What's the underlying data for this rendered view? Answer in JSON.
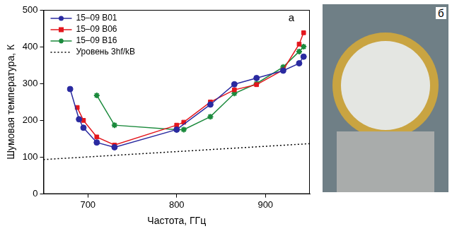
{
  "chart_data": {
    "type": "line",
    "x_label": "Частота, ГГц",
    "y_label": "Шумовая температура, К",
    "annotations": [
      "а"
    ],
    "xlim": [
      650,
      950
    ],
    "xticks": [
      700,
      800,
      900
    ],
    "ylim": [
      0,
      500
    ],
    "yticks": [
      0,
      100,
      200,
      300,
      400,
      500
    ],
    "grid": false,
    "legend": "top-left",
    "series": [
      {
        "name": "15–09 B01",
        "color": "#2a2aa0",
        "marker": "circle",
        "line_style": "solid",
        "x": [
          680,
          690,
          695,
          710,
          730,
          800,
          838,
          865,
          890,
          920,
          938,
          943
        ],
        "values": [
          285,
          203,
          180,
          140,
          127,
          175,
          243,
          298,
          315,
          335,
          355,
          373
        ]
      },
      {
        "name": "15–09 B06",
        "color": "#e3161d",
        "marker": "square",
        "line_style": "solid",
        "x": [
          688,
          695,
          710,
          730,
          800,
          808,
          838,
          865,
          890,
          920,
          938,
          943
        ],
        "values": [
          235,
          200,
          155,
          133,
          187,
          195,
          250,
          283,
          297,
          337,
          407,
          438
        ]
      },
      {
        "name": "15–09 B16",
        "color": "#1b8a3c",
        "marker": "star",
        "line_style": "solid",
        "x": [
          710,
          730,
          800,
          808,
          838,
          865,
          890,
          920,
          938,
          943
        ],
        "values": [
          268,
          187,
          175,
          175,
          210,
          273,
          300,
          345,
          387,
          400
        ]
      },
      {
        "name": "Уровень 3hf/kB",
        "color": "#000000",
        "marker": "none",
        "line_style": "dotted",
        "x": [
          650,
          950
        ],
        "values": [
          93.6,
          136.8
        ]
      }
    ]
  },
  "photo": {
    "label": "б"
  }
}
